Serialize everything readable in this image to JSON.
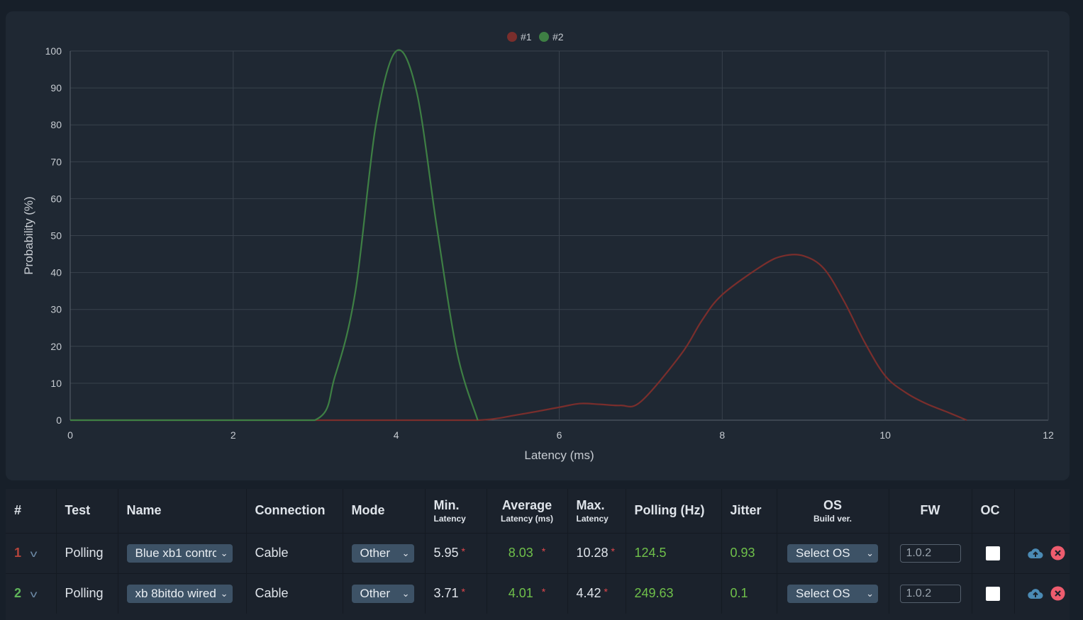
{
  "chart_data": {
    "type": "line",
    "xlabel": "Latency (ms)",
    "ylabel": "Probability (%)",
    "xlim": [
      0,
      12
    ],
    "ylim": [
      0,
      100
    ],
    "xticks": [
      0,
      2,
      4,
      6,
      8,
      10,
      12
    ],
    "yticks": [
      0,
      10,
      20,
      30,
      40,
      50,
      60,
      70,
      80,
      90,
      100
    ],
    "grid": true,
    "legend_position": "top-center",
    "series": [
      {
        "name": "#1",
        "color": "#7a2e2c",
        "x": [
          0,
          1,
          2,
          3,
          4,
          5,
          5.5,
          6,
          6.25,
          6.5,
          6.75,
          7,
          7.5,
          7.75,
          8,
          8.5,
          8.75,
          9,
          9.25,
          9.5,
          9.75,
          10,
          10.25,
          10.5,
          10.75,
          11
        ],
        "y": [
          0,
          0,
          0,
          0,
          0,
          0,
          1.5,
          3.5,
          4.5,
          4.3,
          4,
          5,
          18,
          27,
          34,
          42,
          44.5,
          44.5,
          41,
          32,
          21,
          12,
          7.5,
          4.5,
          2.3,
          0
        ]
      },
      {
        "name": "#2",
        "color": "#3e7f44",
        "x": [
          0,
          1,
          2,
          3,
          3.25,
          3.5,
          3.75,
          4,
          4.25,
          4.5,
          4.75,
          5
        ],
        "y": [
          0,
          0,
          0,
          0,
          12,
          35,
          80,
          100,
          89,
          52,
          18,
          0
        ]
      }
    ]
  },
  "table": {
    "headers": {
      "index": "#",
      "test": "Test",
      "name": "Name",
      "connection": "Connection",
      "mode": "Mode",
      "min": "Min.",
      "min_sub": "Latency",
      "avg": "Average",
      "avg_sub": "Latency (ms)",
      "max": "Max.",
      "max_sub": "Latency",
      "polling": "Polling (Hz)",
      "jitter": "Jitter",
      "os": "OS",
      "os_sub": "Build ver.",
      "fw": "FW",
      "oc": "OC"
    },
    "rows": [
      {
        "index": "1",
        "test": "Polling",
        "name": "Blue xb1 contrc",
        "connection": "Cable",
        "mode": "Other",
        "min": "5.95",
        "avg": "8.03",
        "max": "10.28",
        "polling": "124.5",
        "jitter": "0.93",
        "os": "Select OS",
        "fw": "1.0.2",
        "oc_checked": false
      },
      {
        "index": "2",
        "test": "Polling",
        "name": "xb 8bitdo wired",
        "connection": "Cable",
        "mode": "Other",
        "min": "3.71",
        "avg": "4.01",
        "max": "4.42",
        "polling": "249.63",
        "jitter": "0.1",
        "os": "Select OS",
        "fw": "1.0.2",
        "oc_checked": false
      }
    ],
    "star": "*",
    "chevron": "v",
    "select_arrow": "⌄"
  }
}
